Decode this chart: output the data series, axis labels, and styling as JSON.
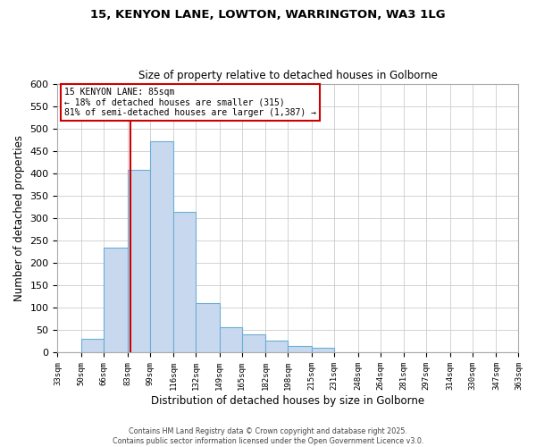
{
  "title_line1": "15, KENYON LANE, LOWTON, WARRINGTON, WA3 1LG",
  "title_line2": "Size of property relative to detached houses in Golborne",
  "xlabel": "Distribution of detached houses by size in Golborne",
  "ylabel": "Number of detached properties",
  "bin_labels": [
    "33sqm",
    "50sqm",
    "66sqm",
    "83sqm",
    "99sqm",
    "116sqm",
    "132sqm",
    "149sqm",
    "165sqm",
    "182sqm",
    "198sqm",
    "215sqm",
    "231sqm",
    "248sqm",
    "264sqm",
    "281sqm",
    "297sqm",
    "314sqm",
    "330sqm",
    "347sqm",
    "363sqm"
  ],
  "bin_edges": [
    33,
    50,
    66,
    83,
    99,
    116,
    132,
    149,
    165,
    182,
    198,
    215,
    231,
    248,
    264,
    281,
    297,
    314,
    330,
    347,
    363
  ],
  "bar_heights": [
    0,
    30,
    234,
    407,
    472,
    314,
    110,
    57,
    40,
    27,
    15,
    10,
    0,
    0,
    0,
    0,
    0,
    0,
    0,
    0
  ],
  "bar_color": "#c8d9ef",
  "bar_edge_color": "#6baed6",
  "vline_x": 85,
  "vline_color": "#cc0000",
  "ylim": [
    0,
    600
  ],
  "yticks": [
    0,
    50,
    100,
    150,
    200,
    250,
    300,
    350,
    400,
    450,
    500,
    550,
    600
  ],
  "annotation_title": "15 KENYON LANE: 85sqm",
  "annotation_line2": "← 18% of detached houses are smaller (315)",
  "annotation_line3": "81% of semi-detached houses are larger (1,387) →",
  "annotation_box_color": "#cc0000",
  "footer_line1": "Contains HM Land Registry data © Crown copyright and database right 2025.",
  "footer_line2": "Contains public sector information licensed under the Open Government Licence v3.0.",
  "bg_color": "#ffffff",
  "grid_color": "#cccccc",
  "fig_width": 6.0,
  "fig_height": 5.0
}
